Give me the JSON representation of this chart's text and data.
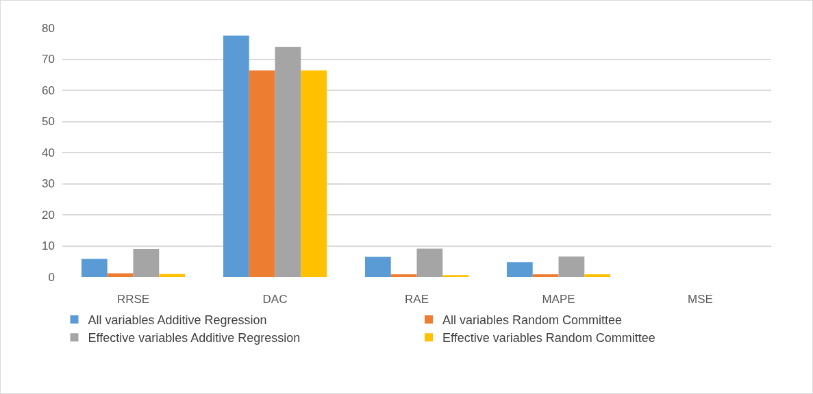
{
  "chart_data": {
    "type": "bar",
    "categories": [
      "RRSE",
      "DAC",
      "RAE",
      "MAPE",
      "MSE"
    ],
    "series": [
      {
        "name": "All variables Additive Regression",
        "color": "#5b9bd5",
        "values": [
          5.8,
          77.6,
          6.5,
          4.8,
          0
        ]
      },
      {
        "name": "All variables Random Committee",
        "color": "#ed7d31",
        "values": [
          1.2,
          66.4,
          0.9,
          0.9,
          0
        ]
      },
      {
        "name": "Effective variables Additive Regression",
        "color": "#a5a5a5",
        "values": [
          9.0,
          73.9,
          9.1,
          6.6,
          0
        ]
      },
      {
        "name": "Effective variables Random Committee",
        "color": "#ffc000",
        "values": [
          1.0,
          66.4,
          0.6,
          0.9,
          0
        ]
      }
    ],
    "ylim": [
      0,
      80
    ],
    "yticks": [
      0,
      10,
      20,
      30,
      40,
      50,
      60,
      70,
      80
    ],
    "grid": "y",
    "legend": "bottom"
  }
}
